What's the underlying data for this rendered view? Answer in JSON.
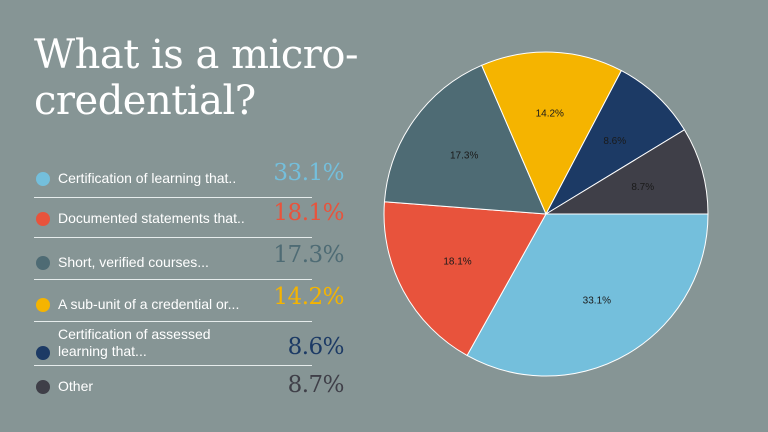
{
  "title": "What is a micro-credential?",
  "chart_data": {
    "type": "pie",
    "categories": [
      "Certification of learning that..",
      "Documented statements that..",
      "Short, verified courses...",
      "A sub-unit of a credential or...",
      "Certification of assessed learning that...",
      "Other"
    ],
    "values": [
      33.1,
      18.1,
      17.3,
      14.2,
      8.6,
      8.7
    ],
    "value_labels": [
      "33.1%",
      "18.1%",
      "17.3%",
      "14.2%",
      "8.6%",
      "8.7%"
    ],
    "colors": [
      "#74bfdc",
      "#e8533c",
      "#4e6b74",
      "#f5b400",
      "#1c3a65",
      "#3f3f48"
    ],
    "legend": "left"
  }
}
